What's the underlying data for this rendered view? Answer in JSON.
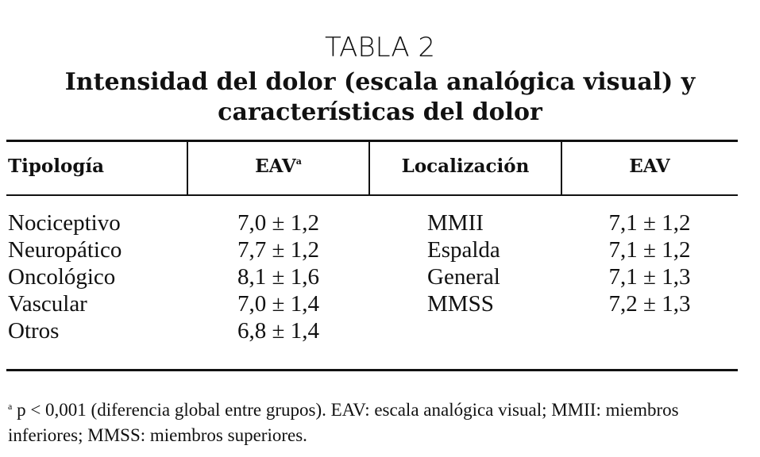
{
  "header": {
    "label": "TABLA 2",
    "title_lines": [
      "Intensidad del dolor (escala analógica visual) y",
      "características del dolor"
    ]
  },
  "table": {
    "columns": [
      "Tipología",
      "EAV",
      "Localización",
      "EAV"
    ],
    "column_mark": "a",
    "left_rows": [
      [
        "Nociceptivo",
        "7,0 ± 1,2"
      ],
      [
        "Neuropático",
        "7,7 ± 1,2"
      ],
      [
        "Oncológico",
        "8,1 ± 1,6"
      ],
      [
        "Vascular",
        "7,0 ± 1,4"
      ],
      [
        "Otros",
        "6,8 ± 1,4"
      ]
    ],
    "right_rows": [
      [
        "MMII",
        "7,1 ± 1,2"
      ],
      [
        "Espalda",
        "7,1 ± 1,2"
      ],
      [
        "General",
        "7,1 ± 1,3"
      ],
      [
        "MMSS",
        "7,2 ± 1,3"
      ]
    ]
  },
  "footnote": {
    "mark": "a",
    "text": "p < 0,001 (diferencia global entre grupos). EAV: escala analógica visual; MMII: miembros inferiores; MMSS: miembros superiores."
  }
}
